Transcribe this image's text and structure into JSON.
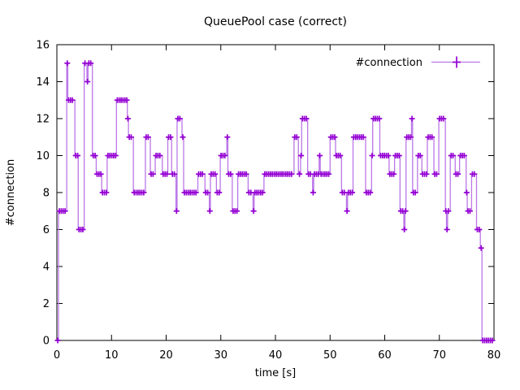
{
  "chart_data": {
    "type": "line",
    "style": "steps-post with plus point markers (gnuplot linespoints)",
    "title": "QueuePool case (correct)",
    "xlabel": "time [s]",
    "ylabel": "#connection",
    "legend": {
      "label": "#connection",
      "position": "top-right-inside"
    },
    "xlim": [
      0,
      80
    ],
    "ylim": [
      0,
      16
    ],
    "xticks": [
      0,
      10,
      20,
      30,
      40,
      50,
      60,
      70,
      80
    ],
    "yticks": [
      0,
      2,
      4,
      6,
      8,
      10,
      12,
      14,
      16
    ],
    "grid": false,
    "colors": {
      "line": "#bb77e8",
      "marker": "#9400d3",
      "axis": "#000000",
      "background": "#ffffff"
    },
    "series": [
      {
        "name": "#connection",
        "t_end": 80,
        "steps": [
          [
            0,
            0
          ],
          [
            0.3,
            7
          ],
          [
            1.8,
            15
          ],
          [
            2.0,
            13
          ],
          [
            3.3,
            10
          ],
          [
            3.9,
            6
          ],
          [
            5.0,
            15
          ],
          [
            5.5,
            14
          ],
          [
            5.7,
            15
          ],
          [
            6.5,
            10
          ],
          [
            7.2,
            9
          ],
          [
            8.2,
            8
          ],
          [
            9.2,
            10
          ],
          [
            10.9,
            13
          ],
          [
            12.9,
            12
          ],
          [
            13.1,
            11
          ],
          [
            14.0,
            8
          ],
          [
            16.2,
            11
          ],
          [
            17.1,
            9
          ],
          [
            18.0,
            10
          ],
          [
            19.3,
            9
          ],
          [
            20.3,
            11
          ],
          [
            21.0,
            9
          ],
          [
            21.8,
            7
          ],
          [
            22.0,
            12
          ],
          [
            22.9,
            11
          ],
          [
            23.2,
            8
          ],
          [
            25.8,
            9
          ],
          [
            27.1,
            8
          ],
          [
            27.9,
            7
          ],
          [
            28.1,
            9
          ],
          [
            29.2,
            8
          ],
          [
            29.9,
            10
          ],
          [
            31.1,
            11
          ],
          [
            31.3,
            9
          ],
          [
            32.1,
            7
          ],
          [
            33.1,
            9
          ],
          [
            35.0,
            8
          ],
          [
            35.9,
            7
          ],
          [
            36.1,
            8
          ],
          [
            37.9,
            9
          ],
          [
            43.4,
            11
          ],
          [
            44.2,
            9
          ],
          [
            44.6,
            10
          ],
          [
            44.8,
            12
          ],
          [
            45.9,
            9
          ],
          [
            46.8,
            8
          ],
          [
            47.0,
            9
          ],
          [
            48.0,
            10
          ],
          [
            48.2,
            9
          ],
          [
            50.0,
            11
          ],
          [
            51.0,
            10
          ],
          [
            52.1,
            8
          ],
          [
            53.0,
            7
          ],
          [
            53.2,
            8
          ],
          [
            54.2,
            11
          ],
          [
            56.5,
            8
          ],
          [
            57.6,
            10
          ],
          [
            57.8,
            12
          ],
          [
            59.1,
            10
          ],
          [
            60.8,
            9
          ],
          [
            61.8,
            10
          ],
          [
            62.8,
            7
          ],
          [
            63.5,
            6
          ],
          [
            63.7,
            7
          ],
          [
            63.9,
            11
          ],
          [
            64.9,
            12
          ],
          [
            65.1,
            8
          ],
          [
            66.0,
            10
          ],
          [
            66.8,
            9
          ],
          [
            67.8,
            11
          ],
          [
            69.0,
            9
          ],
          [
            69.9,
            12
          ],
          [
            71.1,
            7
          ],
          [
            71.3,
            6
          ],
          [
            71.5,
            7
          ],
          [
            72.0,
            10
          ],
          [
            72.9,
            9
          ],
          [
            73.7,
            10
          ],
          [
            74.9,
            8
          ],
          [
            75.1,
            7
          ],
          [
            75.9,
            9
          ],
          [
            76.8,
            6
          ],
          [
            77.5,
            5
          ],
          [
            77.8,
            0
          ]
        ]
      }
    ]
  }
}
